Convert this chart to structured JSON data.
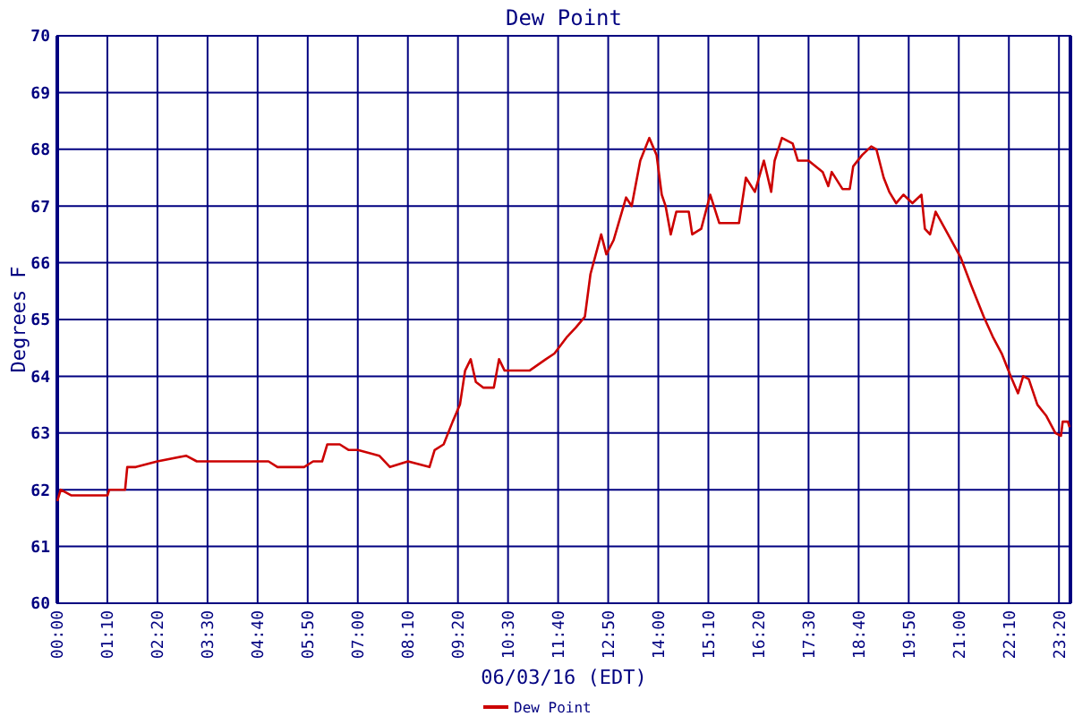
{
  "chart_data": {
    "type": "line",
    "title": "Dew Point",
    "xlabel": "06/03/16 (EDT)",
    "ylabel": "Degrees F",
    "xlim": [
      0,
      23.6
    ],
    "ylim": [
      60,
      70
    ],
    "xticks": [
      {
        "value": 0,
        "label": "00:00"
      },
      {
        "value": 1.1667,
        "label": "01:10"
      },
      {
        "value": 2.3333,
        "label": "02:20"
      },
      {
        "value": 3.5,
        "label": "03:30"
      },
      {
        "value": 4.6667,
        "label": "04:40"
      },
      {
        "value": 5.8333,
        "label": "05:50"
      },
      {
        "value": 7,
        "label": "07:00"
      },
      {
        "value": 8.1667,
        "label": "08:10"
      },
      {
        "value": 9.3333,
        "label": "09:20"
      },
      {
        "value": 10.5,
        "label": "10:30"
      },
      {
        "value": 11.6667,
        "label": "11:40"
      },
      {
        "value": 12.8333,
        "label": "12:50"
      },
      {
        "value": 14,
        "label": "14:00"
      },
      {
        "value": 15.1667,
        "label": "15:10"
      },
      {
        "value": 16.3333,
        "label": "16:20"
      },
      {
        "value": 17.5,
        "label": "17:30"
      },
      {
        "value": 18.6667,
        "label": "18:40"
      },
      {
        "value": 19.8333,
        "label": "19:50"
      },
      {
        "value": 21,
        "label": "21:00"
      },
      {
        "value": 22.1667,
        "label": "22:10"
      },
      {
        "value": 23.3333,
        "label": "23:20"
      }
    ],
    "yticks": [
      60,
      61,
      62,
      63,
      64,
      65,
      66,
      67,
      68,
      69,
      70
    ],
    "grid": true,
    "legend": "bottom",
    "line_style": "solid",
    "series": [
      {
        "name": "Dew Point",
        "color": "#cc0000",
        "x": [
          0,
          0.08,
          0.33,
          1.17,
          1.21,
          1.58,
          1.63,
          1.83,
          2.33,
          3.0,
          3.25,
          4.5,
          4.92,
          5.13,
          5.75,
          5.96,
          6.17,
          6.29,
          6.58,
          6.79,
          7.0,
          7.5,
          7.75,
          8.17,
          8.67,
          8.79,
          9.0,
          9.21,
          9.38,
          9.5,
          9.63,
          9.75,
          9.92,
          10.17,
          10.29,
          10.42,
          11.0,
          11.38,
          11.58,
          11.88,
          12.08,
          12.29,
          12.42,
          12.67,
          12.79,
          12.96,
          13.25,
          13.38,
          13.58,
          13.79,
          13.96,
          14.08,
          14.17,
          14.29,
          14.42,
          14.71,
          14.79,
          15.0,
          15.21,
          15.42,
          15.88,
          16.04,
          16.25,
          16.46,
          16.63,
          16.71,
          16.88,
          17.13,
          17.25,
          17.5,
          17.83,
          17.96,
          18.04,
          18.29,
          18.46,
          18.54,
          18.75,
          18.96,
          19.08,
          19.25,
          19.38,
          19.54,
          19.71,
          19.92,
          20.13,
          20.21,
          20.33,
          20.46,
          20.75,
          21.04,
          21.29,
          21.58,
          21.79,
          22.0,
          22.21,
          22.38,
          22.5,
          22.63,
          22.83,
          23.04,
          23.25,
          23.38,
          23.42,
          23.54,
          23.58
        ],
        "values": [
          61.8,
          62.0,
          61.9,
          61.9,
          62.0,
          62.0,
          62.4,
          62.4,
          62.5,
          62.6,
          62.5,
          62.5,
          62.5,
          62.4,
          62.4,
          62.5,
          62.5,
          62.8,
          62.8,
          62.7,
          62.7,
          62.6,
          62.4,
          62.5,
          62.4,
          62.7,
          62.8,
          63.2,
          63.5,
          64.1,
          64.3,
          63.9,
          63.8,
          63.8,
          64.3,
          64.1,
          64.1,
          64.3,
          64.4,
          64.7,
          64.86,
          65.05,
          65.8,
          66.5,
          66.15,
          66.4,
          67.15,
          67.0,
          67.8,
          68.2,
          67.9,
          67.2,
          67.0,
          66.5,
          66.9,
          66.9,
          66.5,
          66.6,
          67.2,
          66.7,
          66.7,
          67.5,
          67.25,
          67.8,
          67.25,
          67.8,
          68.2,
          68.1,
          67.8,
          67.8,
          67.6,
          67.35,
          67.6,
          67.3,
          67.3,
          67.7,
          67.9,
          68.05,
          68.0,
          67.5,
          67.25,
          67.05,
          67.2,
          67.05,
          67.2,
          66.6,
          66.5,
          66.9,
          66.5,
          66.1,
          65.6,
          65.05,
          64.7,
          64.4,
          64.0,
          63.7,
          64.0,
          63.95,
          63.5,
          63.3,
          63.0,
          62.95,
          63.2,
          63.2,
          63.1
        ]
      }
    ]
  }
}
